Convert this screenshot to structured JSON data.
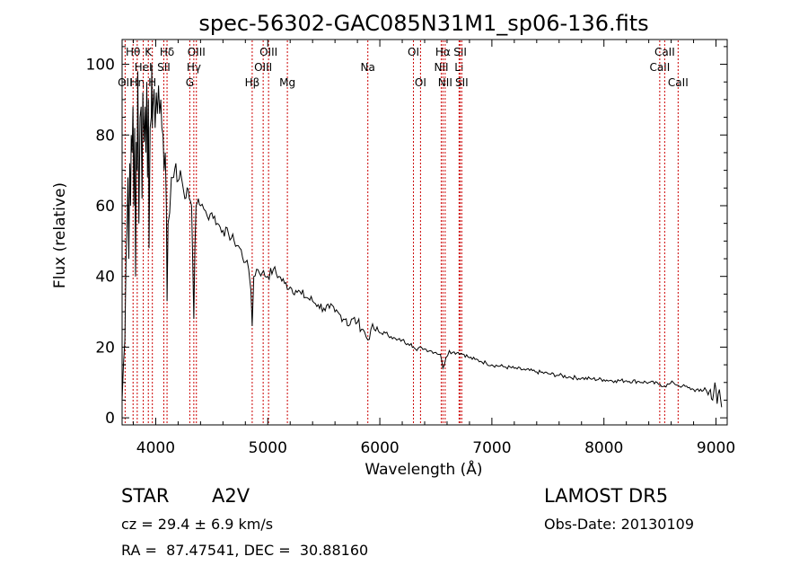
{
  "chart_data": {
    "type": "line",
    "title": "spec-56302-GAC085N31M1_sp06-136.fits",
    "xlabel": "Wavelength (Å)",
    "ylabel": "Flux (relative)",
    "xlim": [
      3700,
      9100
    ],
    "ylim": [
      -2,
      107
    ],
    "x_ticks": [
      4000,
      5000,
      6000,
      7000,
      8000,
      9000
    ],
    "x_tick_labels": [
      "4000",
      "5000",
      "6000",
      "7000",
      "8000",
      "9000"
    ],
    "y_ticks": [
      0,
      20,
      40,
      60,
      80,
      100
    ],
    "y_tick_labels": [
      "0",
      "20",
      "40",
      "60",
      "80",
      "100"
    ],
    "grid": false,
    "line_color": "#000000",
    "marker_color": "#cc0000",
    "series": [
      {
        "x": [
          3700,
          3712,
          3725,
          3735,
          3745,
          3752,
          3760,
          3768,
          3775,
          3782,
          3790,
          3797,
          3805,
          3812,
          3820,
          3827,
          3835,
          3840,
          3850,
          3860,
          3870,
          3878,
          3885,
          3890,
          3897,
          3905,
          3912,
          3920,
          3927,
          3935,
          3940,
          3950,
          3960,
          3965,
          3970,
          3975,
          3985,
          3995,
          4005,
          4015,
          4025,
          4035,
          4045,
          4055,
          4065,
          4075,
          4085,
          4095,
          4101,
          4110,
          4125,
          4140,
          4160,
          4180,
          4200,
          4220,
          4240,
          4260,
          4280,
          4300,
          4320,
          4330,
          4340,
          4350,
          4360,
          4380,
          4400,
          4430,
          4460,
          4500,
          4550,
          4600,
          4650,
          4700,
          4750,
          4800,
          4830,
          4850,
          4861,
          4875,
          4900,
          4950,
          5000,
          5050,
          5100,
          5150,
          5200,
          5250,
          5300,
          5350,
          5400,
          5450,
          5500,
          5550,
          5600,
          5650,
          5700,
          5720,
          5760,
          5800,
          5850,
          5893,
          5920,
          5950,
          6000,
          6050,
          6100,
          6150,
          6200,
          6250,
          6280,
          6300,
          6330,
          6370,
          6400,
          6450,
          6500,
          6540,
          6563,
          6590,
          6620,
          6650,
          6700,
          6750,
          6800,
          6850,
          6900,
          6950,
          7000,
          7100,
          7200,
          7300,
          7400,
          7500,
          7600,
          7700,
          7800,
          7900,
          8000,
          8100,
          8200,
          8300,
          8400,
          8500,
          8540,
          8580,
          8620,
          8660,
          8700,
          8750,
          8800,
          8850,
          8900,
          8930,
          8950,
          8970,
          8990,
          9010,
          9030,
          9050
        ],
        "y": [
          5,
          15,
          22,
          45,
          55,
          68,
          45,
          72,
          60,
          80,
          75,
          88,
          60,
          82,
          40,
          78,
          70,
          98,
          55,
          85,
          88,
          62,
          92,
          85,
          78,
          88,
          75,
          95,
          68,
          90,
          48,
          82,
          85,
          100,
          82,
          88,
          93,
          82,
          92,
          86,
          94,
          86,
          90,
          82,
          80,
          70,
          75,
          60,
          33,
          55,
          58,
          68,
          68,
          72,
          67,
          70,
          66,
          62,
          65,
          62,
          60,
          45,
          28,
          48,
          60,
          62,
          60,
          59,
          57,
          58,
          55,
          53,
          52,
          50,
          48,
          44,
          42,
          36,
          26,
          40,
          42,
          41,
          40,
          42,
          40,
          38,
          37,
          36,
          35,
          34,
          33,
          32,
          31,
          31,
          30,
          29,
          28,
          26,
          28,
          27,
          25,
          22,
          25,
          25,
          24,
          24,
          23,
          22,
          22,
          21,
          21,
          20,
          19,
          20,
          19.5,
          19,
          18.5,
          18,
          14,
          17,
          19,
          18.5,
          18.5,
          18,
          17,
          16.5,
          16,
          15.5,
          15,
          14.5,
          14,
          13.5,
          13,
          12.5,
          12,
          11.5,
          11.2,
          11,
          10.8,
          10.5,
          10.5,
          10.3,
          10,
          9.5,
          9,
          9.5,
          10,
          9.2,
          9,
          8.5,
          8,
          7.5,
          8.5,
          6.5,
          8,
          5,
          10,
          4,
          8,
          3
        ]
      }
    ],
    "lines": [
      {
        "x": 3727,
        "labels": [
          "OII"
        ],
        "row": 3
      },
      {
        "x": 3798,
        "labels": [
          "Hθ"
        ],
        "row": 1
      },
      {
        "x": 3835,
        "labels": [
          "Hη"
        ],
        "row": 3
      },
      {
        "x": 3889,
        "labels": [
          "HeI"
        ],
        "row": 2
      },
      {
        "x": 3934,
        "labels": [
          "K"
        ],
        "row": 1
      },
      {
        "x": 3970,
        "labels": [
          "H"
        ],
        "row": 3
      },
      {
        "x": 4072,
        "labels": [
          "SII"
        ],
        "row": 2
      },
      {
        "x": 4101,
        "labels": [
          "Hδ"
        ],
        "row": 1
      },
      {
        "x": 4304,
        "labels": [
          "G"
        ],
        "row": 3
      },
      {
        "x": 4340,
        "labels": [
          "Hγ"
        ],
        "row": 2
      },
      {
        "x": 4363,
        "labels": [
          "OIII"
        ],
        "row": 1
      },
      {
        "x": 4861,
        "labels": [
          "Hβ"
        ],
        "row": 3
      },
      {
        "x": 4959,
        "labels": [
          "OIII"
        ],
        "row": 2
      },
      {
        "x": 5007,
        "labels": [
          "OIII"
        ],
        "row": 1
      },
      {
        "x": 5175,
        "labels": [
          "Mg"
        ],
        "row": 3
      },
      {
        "x": 5893,
        "labels": [
          "Na"
        ],
        "row": 2
      },
      {
        "x": 6300,
        "labels": [
          "OI"
        ],
        "row": 1
      },
      {
        "x": 6363,
        "labels": [
          "OI"
        ],
        "row": 3
      },
      {
        "x": 6548,
        "labels": [
          "NII"
        ],
        "row": 2
      },
      {
        "x": 6563,
        "labels": [
          "Hα"
        ],
        "row": 1
      },
      {
        "x": 6583,
        "labels": [
          "NII"
        ],
        "row": 3
      },
      {
        "x": 6707,
        "labels": [
          "Li"
        ],
        "row": 2
      },
      {
        "x": 6717,
        "labels": [
          "SII"
        ],
        "row": 1
      },
      {
        "x": 6731,
        "labels": [
          "SII"
        ],
        "row": 3
      },
      {
        "x": 8498,
        "labels": [
          "CaII"
        ],
        "row": 2
      },
      {
        "x": 8542,
        "labels": [
          "CaII"
        ],
        "row": 1
      },
      {
        "x": 8662,
        "labels": [
          "CaII"
        ],
        "row": 3
      }
    ]
  },
  "footer": {
    "class_label": "STAR",
    "subclass": "A2V",
    "survey": "LAMOST DR5",
    "cz_text": "cz = 29.4 ± 6.9 km/s",
    "obs_date": "Obs-Date: 20130109",
    "coords": "RA =  87.47541, DEC =  30.88160"
  }
}
